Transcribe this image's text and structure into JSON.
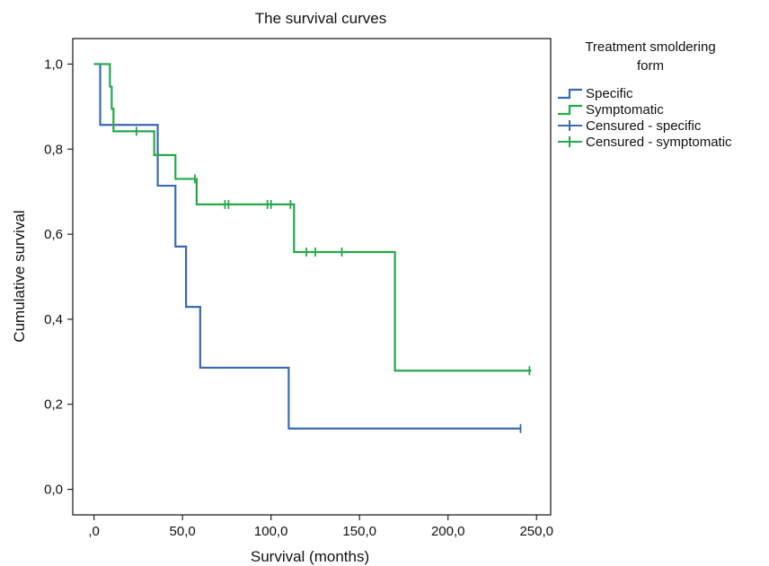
{
  "chart_data": {
    "type": "line",
    "step": true,
    "title": "The survival curves",
    "xlabel": "Survival (months)",
    "ylabel": "Cumulative survival",
    "xlim": [
      -12,
      258
    ],
    "ylim": [
      -0.06,
      1.06
    ],
    "x_ticks": [
      0,
      50,
      100,
      150,
      200,
      250
    ],
    "x_tick_labels": [
      ",0",
      "50,0",
      "100,0",
      "150,0",
      "200,0",
      "250,0"
    ],
    "y_ticks": [
      0,
      0.2,
      0.4,
      0.6,
      0.8,
      1.0
    ],
    "y_tick_labels": [
      "0,0",
      "0,2",
      "0,4",
      "0,6",
      "0,8",
      "1,0"
    ],
    "legend": {
      "title_line1": "Treatment smoldering",
      "title_line2": "form",
      "placement": "outside-right",
      "entries": [
        "Specific",
        "Symptomatic",
        "Censured - specific",
        "Censured - symptomatic"
      ]
    },
    "series": [
      {
        "name": "Specific",
        "color": "#3a6ab4",
        "steps": [
          [
            0,
            1.0
          ],
          [
            3.5,
            0.857
          ],
          [
            36,
            0.714
          ],
          [
            46,
            0.571
          ],
          [
            52,
            0.429
          ],
          [
            60,
            0.286
          ],
          [
            110,
            0.143
          ],
          [
            241,
            0.143
          ]
        ],
        "censored": [
          {
            "x": 241,
            "y": 0.143
          }
        ]
      },
      {
        "name": "Symptomatic",
        "color": "#26a84b",
        "steps": [
          [
            0,
            1.0
          ],
          [
            9,
            0.947
          ],
          [
            10,
            0.895
          ],
          [
            11,
            0.842
          ],
          [
            34,
            0.786
          ],
          [
            46,
            0.73
          ],
          [
            58,
            0.67
          ],
          [
            113,
            0.558
          ],
          [
            170,
            0.279
          ],
          [
            247,
            0.279
          ]
        ],
        "censored": [
          {
            "x": 24,
            "y": 0.842
          },
          {
            "x": 57,
            "y": 0.73
          },
          {
            "x": 74,
            "y": 0.67
          },
          {
            "x": 76,
            "y": 0.67
          },
          {
            "x": 98,
            "y": 0.67
          },
          {
            "x": 100,
            "y": 0.67
          },
          {
            "x": 111,
            "y": 0.67
          },
          {
            "x": 120,
            "y": 0.558
          },
          {
            "x": 125,
            "y": 0.558
          },
          {
            "x": 140,
            "y": 0.558
          },
          {
            "x": 246,
            "y": 0.279
          }
        ]
      }
    ]
  }
}
